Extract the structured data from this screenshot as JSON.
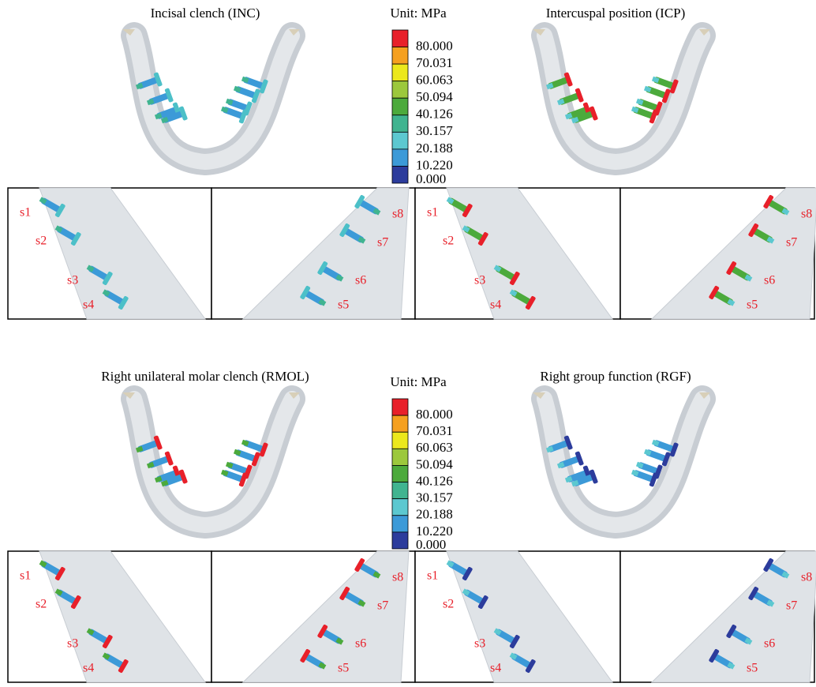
{
  "panels": [
    {
      "title": "Incisal clench (INC)",
      "details": [
        [
          "s1",
          "s2",
          "s3",
          "s4"
        ],
        [
          "s8",
          "s7",
          "s6",
          "s5"
        ]
      ]
    },
    {
      "title": "Intercuspal position (ICP)",
      "details": [
        [
          "s1",
          "s2",
          "s3",
          "s4"
        ],
        [
          "s8",
          "s7",
          "s6",
          "s5"
        ]
      ]
    },
    {
      "title": "Right unilateral molar clench (RMOL)",
      "details": [
        [
          "s1",
          "s2",
          "s3",
          "s4"
        ],
        [
          "s8",
          "s7",
          "s6",
          "s5"
        ]
      ]
    },
    {
      "title": "Right group function (RGF)",
      "details": [
        [
          "s1",
          "s2",
          "s3",
          "s4"
        ],
        [
          "s8",
          "s7",
          "s6",
          "s5"
        ]
      ]
    }
  ],
  "legends": [
    {
      "unit": "Unit: MPa",
      "labels": [
        "80.000",
        "70.031",
        "60.063",
        "50.094",
        "40.126",
        "30.157",
        "20.188",
        "10.220",
        "0.000"
      ]
    },
    {
      "unit": "Unit: MPa",
      "labels": [
        "80.000",
        "70.031",
        "60.063",
        "50.094",
        "40.126",
        "30.157",
        "20.188",
        "10.220",
        "0.000"
      ]
    }
  ]
}
